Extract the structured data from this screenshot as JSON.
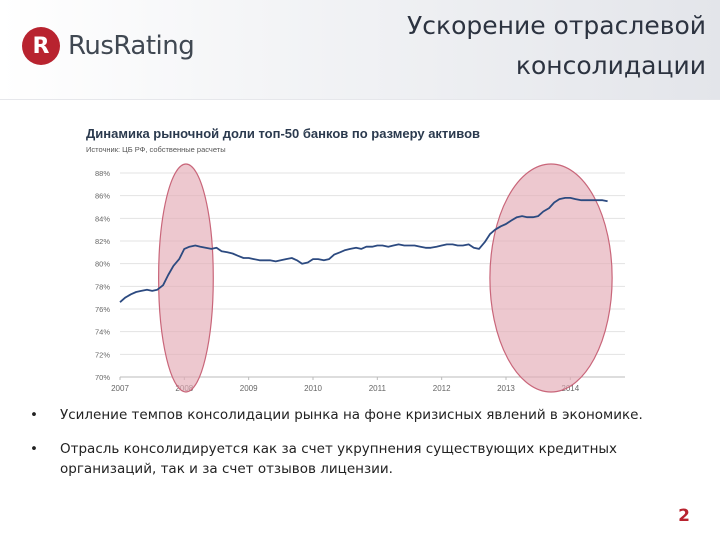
{
  "header": {
    "logo_letter": "R",
    "logo_text": "RusRating",
    "title_line1": "Ускорение отраслевой",
    "title_line2": "консолидации"
  },
  "chart_data": {
    "type": "line",
    "title": "Динамика рыночной доли топ-50 банков по размеру активов",
    "subtitle": "Источник: ЦБ РФ, собственные расчеты",
    "x_tick_labels": [
      "2007",
      "2008",
      "2009",
      "2010",
      "2011",
      "2012",
      "2013",
      "2014"
    ],
    "y_tick_labels": [
      "70%",
      "72%",
      "74%",
      "76%",
      "78%",
      "80%",
      "82%",
      "84%",
      "86%",
      "88%"
    ],
    "ylim": [
      70,
      88
    ],
    "xlim": [
      2007.0,
      2014.85
    ],
    "grid": true,
    "line_color": "#2c4a80",
    "highlight_color": "#e3aab5",
    "highlight_stroke": "#c9667a",
    "highlight_regions": [
      {
        "x_from": 2007.6,
        "x_to": 2008.45
      },
      {
        "x_from": 2012.75,
        "x_to": 2014.65
      }
    ],
    "series": [
      {
        "x": [
          2007.0,
          2007.08,
          2007.17,
          2007.25,
          2007.33,
          2007.42,
          2007.5,
          2007.58,
          2007.67,
          2007.75,
          2007.83,
          2007.92,
          2008.0,
          2008.08,
          2008.17,
          2008.25,
          2008.33,
          2008.42,
          2008.5,
          2008.58,
          2008.67,
          2008.75,
          2008.83,
          2008.92,
          2009.0,
          2009.08,
          2009.17,
          2009.25,
          2009.33,
          2009.42,
          2009.5,
          2009.58,
          2009.67,
          2009.75,
          2009.83,
          2009.92,
          2010.0,
          2010.08,
          2010.17,
          2010.25,
          2010.33,
          2010.42,
          2010.5,
          2010.58,
          2010.67,
          2010.75,
          2010.83,
          2010.92,
          2011.0,
          2011.08,
          2011.17,
          2011.25,
          2011.33,
          2011.42,
          2011.5,
          2011.58,
          2011.67,
          2011.75,
          2011.83,
          2011.92,
          2012.0,
          2012.08,
          2012.17,
          2012.25,
          2012.33,
          2012.42,
          2012.5,
          2012.58,
          2012.67,
          2012.75,
          2012.83,
          2012.92,
          2013.0,
          2013.08,
          2013.17,
          2013.25,
          2013.33,
          2013.42,
          2013.5,
          2013.58,
          2013.67,
          2013.75,
          2013.83,
          2013.92,
          2014.0,
          2014.08,
          2014.17,
          2014.25,
          2014.33,
          2014.42,
          2014.5,
          2014.58
        ],
        "values": [
          76.6,
          77.0,
          77.3,
          77.5,
          77.6,
          77.7,
          77.6,
          77.7,
          78.1,
          79.0,
          79.8,
          80.4,
          81.3,
          81.5,
          81.6,
          81.5,
          81.4,
          81.3,
          81.4,
          81.1,
          81.0,
          80.9,
          80.7,
          80.5,
          80.5,
          80.4,
          80.3,
          80.3,
          80.3,
          80.2,
          80.3,
          80.4,
          80.5,
          80.3,
          80.0,
          80.1,
          80.4,
          80.4,
          80.3,
          80.4,
          80.8,
          81.0,
          81.2,
          81.3,
          81.4,
          81.3,
          81.5,
          81.5,
          81.6,
          81.6,
          81.5,
          81.6,
          81.7,
          81.6,
          81.6,
          81.6,
          81.5,
          81.4,
          81.4,
          81.5,
          81.6,
          81.7,
          81.7,
          81.6,
          81.6,
          81.7,
          81.4,
          81.3,
          81.9,
          82.6,
          83.0,
          83.3,
          83.5,
          83.8,
          84.1,
          84.2,
          84.1,
          84.1,
          84.2,
          84.6,
          84.9,
          85.4,
          85.7,
          85.8,
          85.8,
          85.7,
          85.6,
          85.6,
          85.6,
          85.6,
          85.6,
          85.5
        ]
      }
    ]
  },
  "bullets": [
    "Усиление темпов консолидации рынка на фоне кризисных явлений в экономике.",
    "Отрасль консолидируется как за счет укрупнения существующих кредитных организаций, так и за счет отзывов лицензии."
  ],
  "bullet_symbol": "•",
  "page_number": "2"
}
